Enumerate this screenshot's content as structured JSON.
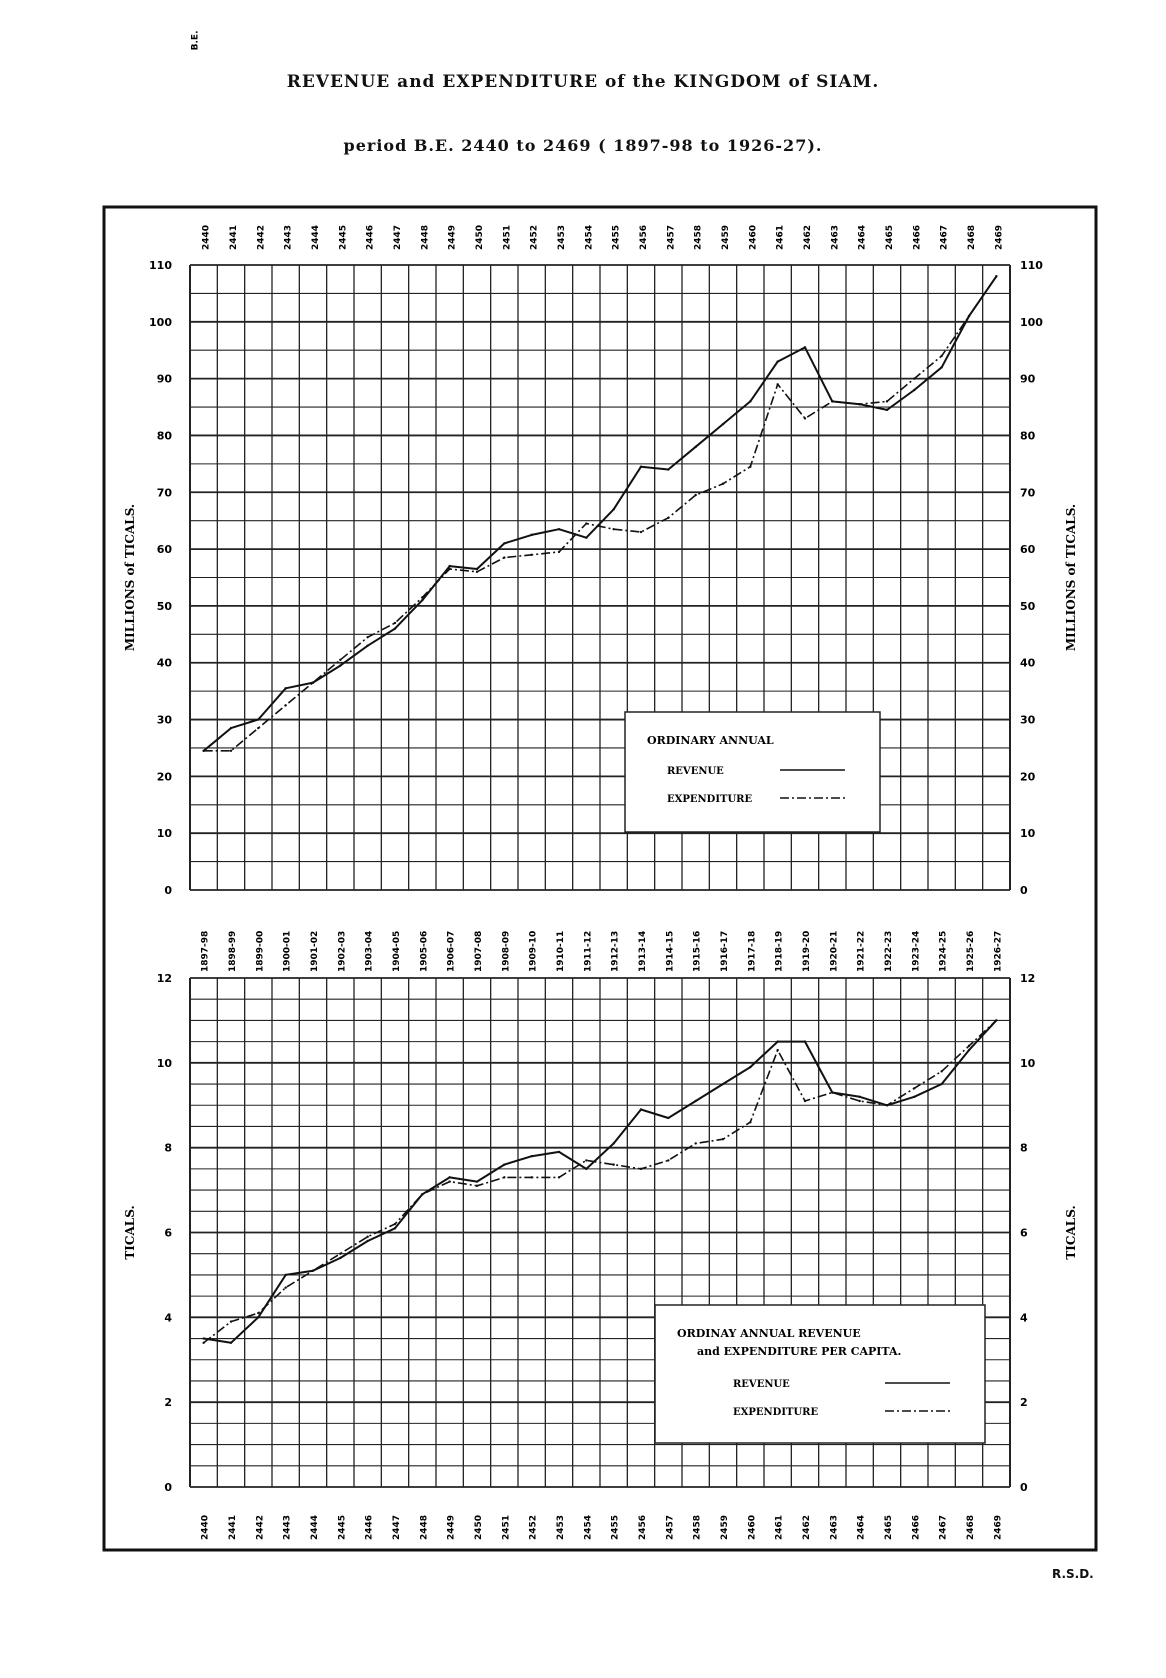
{
  "page": {
    "title": "REVENUE and EXPENDITURE of the KINGDOM of SIAM.",
    "subtitle": "period B.E. 2440 to 2469 ( 1897-98 to 1926-27).",
    "signature": "R.S.D."
  },
  "years_be": [
    "2440",
    "2441",
    "2442",
    "2443",
    "2444",
    "2445",
    "2446",
    "2447",
    "2448",
    "2449",
    "2450",
    "2451",
    "2452",
    "2453",
    "2454",
    "2455",
    "2456",
    "2457",
    "2458",
    "2459",
    "2460",
    "2461",
    "2462",
    "2463",
    "2464",
    "2465",
    "2466",
    "2467",
    "2468",
    "2469"
  ],
  "years_be_header": "B.E.",
  "years_ad": [
    "1897-98",
    "1898-99",
    "1899-00",
    "1900-01",
    "1901-02",
    "1902-03",
    "1903-04",
    "1904-05",
    "1905-06",
    "1906-07",
    "1907-08",
    "1908-09",
    "1909-10",
    "1910-11",
    "1911-12",
    "1912-13",
    "1913-14",
    "1914-15",
    "1915-16",
    "1916-17",
    "1917-18",
    "1918-19",
    "1919-20",
    "1920-21",
    "1921-22",
    "1922-23",
    "1923-24",
    "1924-25",
    "1925-26",
    "1926-27"
  ],
  "chart_data": [
    {
      "type": "line",
      "ylabel": "MILLIONS of TICALS.",
      "ylim": [
        0,
        110
      ],
      "yticks": [
        0,
        10,
        20,
        30,
        40,
        50,
        60,
        70,
        80,
        90,
        100,
        110
      ],
      "x": [
        "1897-98",
        "1898-99",
        "1899-00",
        "1900-01",
        "1901-02",
        "1902-03",
        "1903-04",
        "1904-05",
        "1905-06",
        "1906-07",
        "1907-08",
        "1908-09",
        "1909-10",
        "1910-11",
        "1911-12",
        "1912-13",
        "1913-14",
        "1914-15",
        "1915-16",
        "1916-17",
        "1917-18",
        "1918-19",
        "1919-20",
        "1920-21",
        "1921-22",
        "1922-23",
        "1923-24",
        "1924-25",
        "1925-26",
        "1926-27"
      ],
      "legend_title": "ORDINARY ANNUAL",
      "series": [
        {
          "name": "REVENUE",
          "style": "solid",
          "values": [
            24.5,
            28.5,
            30,
            35.5,
            36.5,
            39.5,
            43,
            46,
            51,
            57,
            56.5,
            61,
            62.5,
            63.5,
            62,
            67,
            74.5,
            74,
            78,
            82,
            86,
            93,
            95.5,
            86,
            85.5,
            84.5,
            88,
            92,
            101,
            108
          ]
        },
        {
          "name": "EXPENDITURE",
          "style": "dash-dot",
          "values": [
            24.5,
            24.5,
            28.5,
            32.5,
            36.5,
            40.5,
            44.5,
            47,
            51.5,
            56.5,
            56,
            58.5,
            59,
            59.5,
            64.5,
            63.5,
            63,
            65.5,
            69.5,
            71.5,
            74.5,
            89,
            83,
            86,
            85.5,
            86,
            90,
            94,
            101,
            108
          ]
        }
      ]
    },
    {
      "type": "line",
      "ylabel": "TICALS.",
      "ylim": [
        0,
        12
      ],
      "yticks": [
        0,
        2,
        4,
        6,
        8,
        10,
        12
      ],
      "x": [
        "1897-98",
        "1898-99",
        "1899-00",
        "1900-01",
        "1901-02",
        "1902-03",
        "1903-04",
        "1904-05",
        "1905-06",
        "1906-07",
        "1907-08",
        "1908-09",
        "1909-10",
        "1910-11",
        "1911-12",
        "1912-13",
        "1913-14",
        "1914-15",
        "1915-16",
        "1916-17",
        "1917-18",
        "1918-19",
        "1919-20",
        "1920-21",
        "1921-22",
        "1922-23",
        "1923-24",
        "1924-25",
        "1925-26",
        "1926-27"
      ],
      "legend_title": "ORDINAY ANNUAL REVENUE and EXPENDITURE PER CAPITA.",
      "series": [
        {
          "name": "REVENUE",
          "style": "solid",
          "values": [
            3.5,
            3.4,
            4,
            5,
            5.1,
            5.4,
            5.8,
            6.1,
            6.9,
            7.3,
            7.2,
            7.6,
            7.8,
            7.9,
            7.5,
            8.1,
            8.9,
            8.7,
            9.1,
            9.5,
            9.9,
            10.5,
            10.5,
            9.3,
            9.2,
            9,
            9.2,
            9.5,
            10.3,
            11
          ]
        },
        {
          "name": "EXPENDITURE",
          "style": "dash-dot",
          "values": [
            3.4,
            3.9,
            4.1,
            4.7,
            5.1,
            5.5,
            5.9,
            6.2,
            6.9,
            7.2,
            7.1,
            7.3,
            7.3,
            7.3,
            7.7,
            7.6,
            7.5,
            7.7,
            8.1,
            8.2,
            8.6,
            10.3,
            9.1,
            9.3,
            9.1,
            9,
            9.4,
            9.8,
            10.4,
            11
          ]
        }
      ]
    }
  ]
}
